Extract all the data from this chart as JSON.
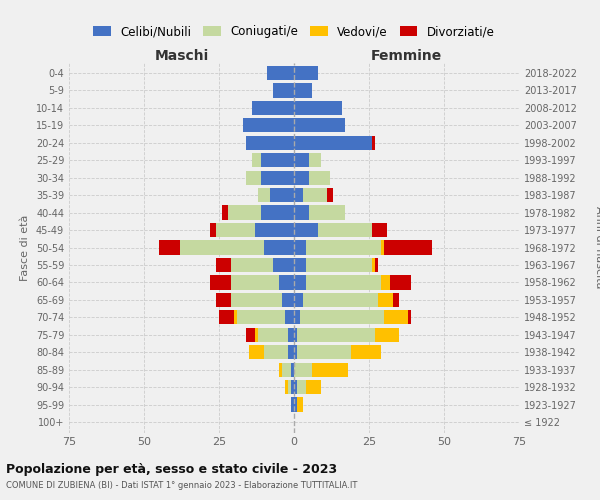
{
  "age_groups": [
    "100+",
    "95-99",
    "90-94",
    "85-89",
    "80-84",
    "75-79",
    "70-74",
    "65-69",
    "60-64",
    "55-59",
    "50-54",
    "45-49",
    "40-44",
    "35-39",
    "30-34",
    "25-29",
    "20-24",
    "15-19",
    "10-14",
    "5-9",
    "0-4"
  ],
  "birth_years": [
    "≤ 1922",
    "1923-1927",
    "1928-1932",
    "1933-1937",
    "1938-1942",
    "1943-1947",
    "1948-1952",
    "1953-1957",
    "1958-1962",
    "1963-1967",
    "1968-1972",
    "1973-1977",
    "1978-1982",
    "1983-1987",
    "1988-1992",
    "1993-1997",
    "1998-2002",
    "2003-2007",
    "2008-2012",
    "2013-2017",
    "2018-2022"
  ],
  "maschi": {
    "celibi": [
      0,
      1,
      1,
      1,
      2,
      2,
      3,
      4,
      5,
      7,
      10,
      13,
      11,
      8,
      11,
      11,
      16,
      17,
      14,
      7,
      9
    ],
    "coniugati": [
      0,
      0,
      1,
      3,
      8,
      10,
      16,
      17,
      16,
      14,
      28,
      13,
      11,
      4,
      5,
      3,
      0,
      0,
      0,
      0,
      0
    ],
    "vedovi": [
      0,
      0,
      1,
      1,
      5,
      1,
      1,
      0,
      0,
      0,
      0,
      0,
      0,
      0,
      0,
      0,
      0,
      0,
      0,
      0,
      0
    ],
    "divorziati": [
      0,
      0,
      0,
      0,
      0,
      3,
      5,
      5,
      7,
      5,
      7,
      2,
      2,
      0,
      0,
      0,
      0,
      0,
      0,
      0,
      0
    ]
  },
  "femmine": {
    "nubili": [
      0,
      1,
      1,
      0,
      1,
      1,
      2,
      3,
      4,
      4,
      4,
      8,
      5,
      3,
      5,
      5,
      26,
      17,
      16,
      6,
      8
    ],
    "coniugate": [
      0,
      0,
      3,
      6,
      18,
      26,
      28,
      25,
      25,
      22,
      25,
      18,
      12,
      8,
      7,
      4,
      0,
      0,
      0,
      0,
      0
    ],
    "vedove": [
      0,
      2,
      5,
      12,
      10,
      8,
      8,
      5,
      3,
      1,
      1,
      0,
      0,
      0,
      0,
      0,
      0,
      0,
      0,
      0,
      0
    ],
    "divorziate": [
      0,
      0,
      0,
      0,
      0,
      0,
      1,
      2,
      7,
      1,
      16,
      5,
      0,
      2,
      0,
      0,
      1,
      0,
      0,
      0,
      0
    ]
  },
  "colors": {
    "celibi": "#4472c4",
    "coniugati": "#c5d9a0",
    "vedovi": "#ffc000",
    "divorziati": "#cc0000"
  },
  "xlim": 75,
  "title": "Popolazione per età, sesso e stato civile - 2023",
  "subtitle": "COMUNE DI ZUBIENA (BI) - Dati ISTAT 1° gennaio 2023 - Elaborazione TUTTITALIA.IT",
  "ylabel_left": "Fasce di età",
  "ylabel_right": "Anni di nascita",
  "xlabel_maschi": "Maschi",
  "xlabel_femmine": "Femmine",
  "legend_labels": [
    "Celibi/Nubili",
    "Coniugati/e",
    "Vedovi/e",
    "Divorziati/e"
  ],
  "background_color": "#f0f0f0"
}
